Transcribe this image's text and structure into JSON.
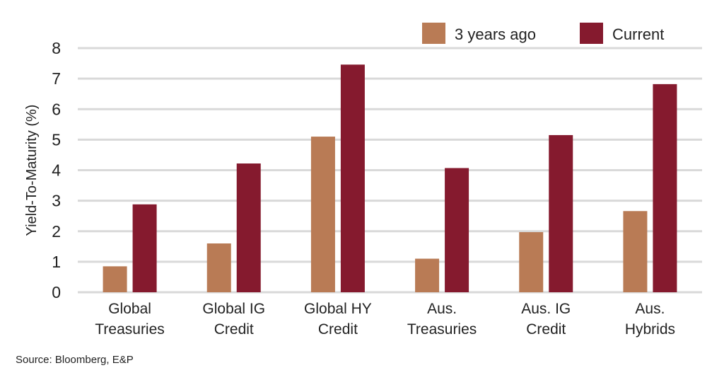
{
  "chart_data": {
    "type": "bar",
    "title": "",
    "xlabel": "",
    "ylabel": "Yield-To-Maturity (%)",
    "ylim": [
      0,
      8
    ],
    "yticks": [
      0,
      1,
      2,
      3,
      4,
      5,
      6,
      7,
      8
    ],
    "grid": true,
    "legend_position": "top-right",
    "categories": [
      [
        "Global",
        "Treasuries"
      ],
      [
        "Global IG",
        "Credit"
      ],
      [
        "Global HY",
        "Credit"
      ],
      [
        "Aus.",
        "Treasuries"
      ],
      [
        "Aus. IG",
        "Credit"
      ],
      [
        "Aus.",
        "Hybrids"
      ]
    ],
    "series": [
      {
        "name": "3 years ago",
        "color": "#b97b55",
        "values": [
          0.85,
          1.6,
          5.1,
          1.1,
          1.97,
          2.66
        ]
      },
      {
        "name": "Current",
        "color": "#851a2e",
        "values": [
          2.88,
          4.22,
          7.46,
          4.07,
          5.15,
          6.82
        ]
      }
    ]
  },
  "source": "Source: Bloomberg, E&P"
}
